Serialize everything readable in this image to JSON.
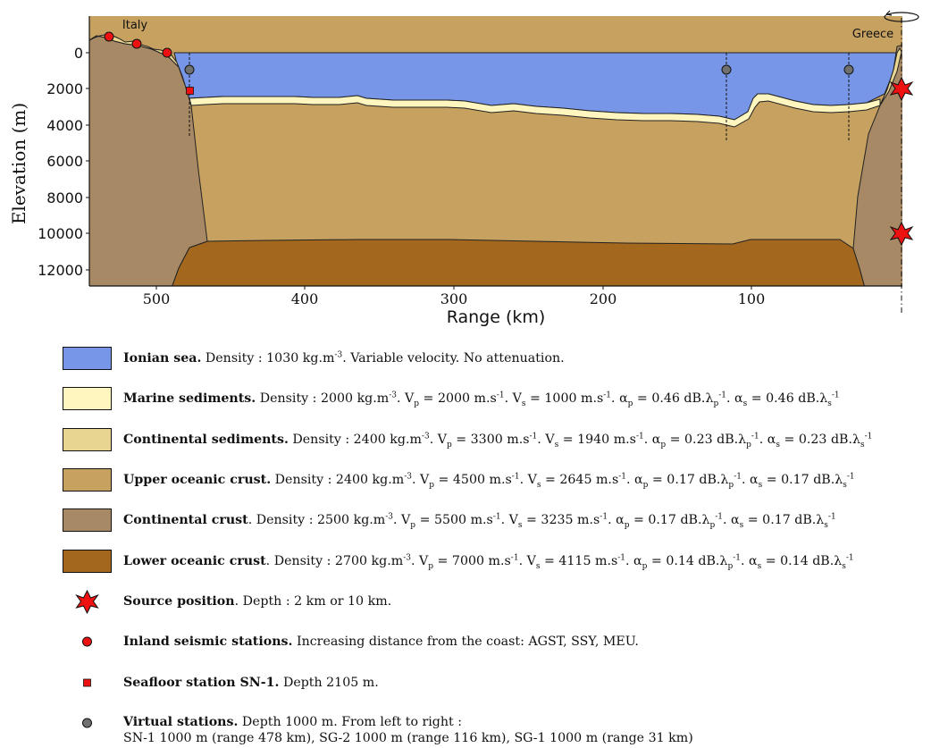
{
  "figure": {
    "ylabel": "Elevation (m)",
    "xlabel": "Range (km)",
    "yticks": [
      "0",
      "2000",
      "4000",
      "6000",
      "8000",
      "10000",
      "12000"
    ],
    "xticks": [
      "500",
      "400",
      "300",
      "200",
      "100"
    ],
    "label_italy": "Italy",
    "label_greece": "Greece"
  },
  "colors": {
    "sea": "#7896e8",
    "marine_sediments": "#fff5bf",
    "continental_sediments": "#e7d591",
    "upper_oceanic_crust": "#c6a15f",
    "continental_crust": "#a88965",
    "lower_oceanic_crust": "#a3681e",
    "source": "#ee1111",
    "virtual_station": "#707070"
  },
  "legend": [
    {
      "bold": "Ionian sea.",
      "rest": "Density : 1030 kg.m-3. Variable velocity. No attenuation."
    },
    {
      "bold": "Marine sediments.",
      "rest": "Density : 2000 kg.m-3. Vp = 2000 m.s-1. Vs = 1000 m.s-1. αp = 0.46 dB.λp-1. αs = 0.46 dB.λs-1"
    },
    {
      "bold": "Continental sediments.",
      "rest": "Density : 2400 kg.m-3. Vp = 3300 m.s-1. Vs = 1940 m.s-1. αp = 0.23 dB.λp-1. αs = 0.23 dB.λs-1"
    },
    {
      "bold": "Upper oceanic crust.",
      "rest": "Density : 2400 kg.m-3. Vp = 4500 m.s-1. Vs = 2645 m.s-1. αp = 0.17 dB.λp-1. αs = 0.17 dB.λs-1"
    },
    {
      "bold": "Continental crust",
      "rest": ". Density : 2500 kg.m-3. Vp = 5500 m.s-1. Vs = 3235 m.s-1. αp = 0.17 dB.λp-1. αs = 0.17 dB.λs-1"
    },
    {
      "bold": "Lower oceanic crust",
      "rest": ". Density : 2700 kg.m-3. Vp = 7000 m.s-1. Vs = 4115 m.s-1. αp = 0.14 dB.λp-1. αs = 0.14 dB.λs-1"
    },
    {
      "bold": "Source position",
      "rest": ". Depth : 2 km or 10 km."
    },
    {
      "bold": "Inland seismic stations.",
      "rest": "Increasing distance from the coast: AGST, SSY, MEU."
    },
    {
      "bold": "Seafloor station SN-1.",
      "rest": "Depth 2105 m."
    },
    {
      "bold": "Virtual stations.",
      "rest": "Depth 1000 m. From left to right :",
      "line2": "SN-1 1000 m (range 478 km), SG-2 1000 m (range 116 km), SG-1 1000 m (range 31 km)"
    }
  ]
}
